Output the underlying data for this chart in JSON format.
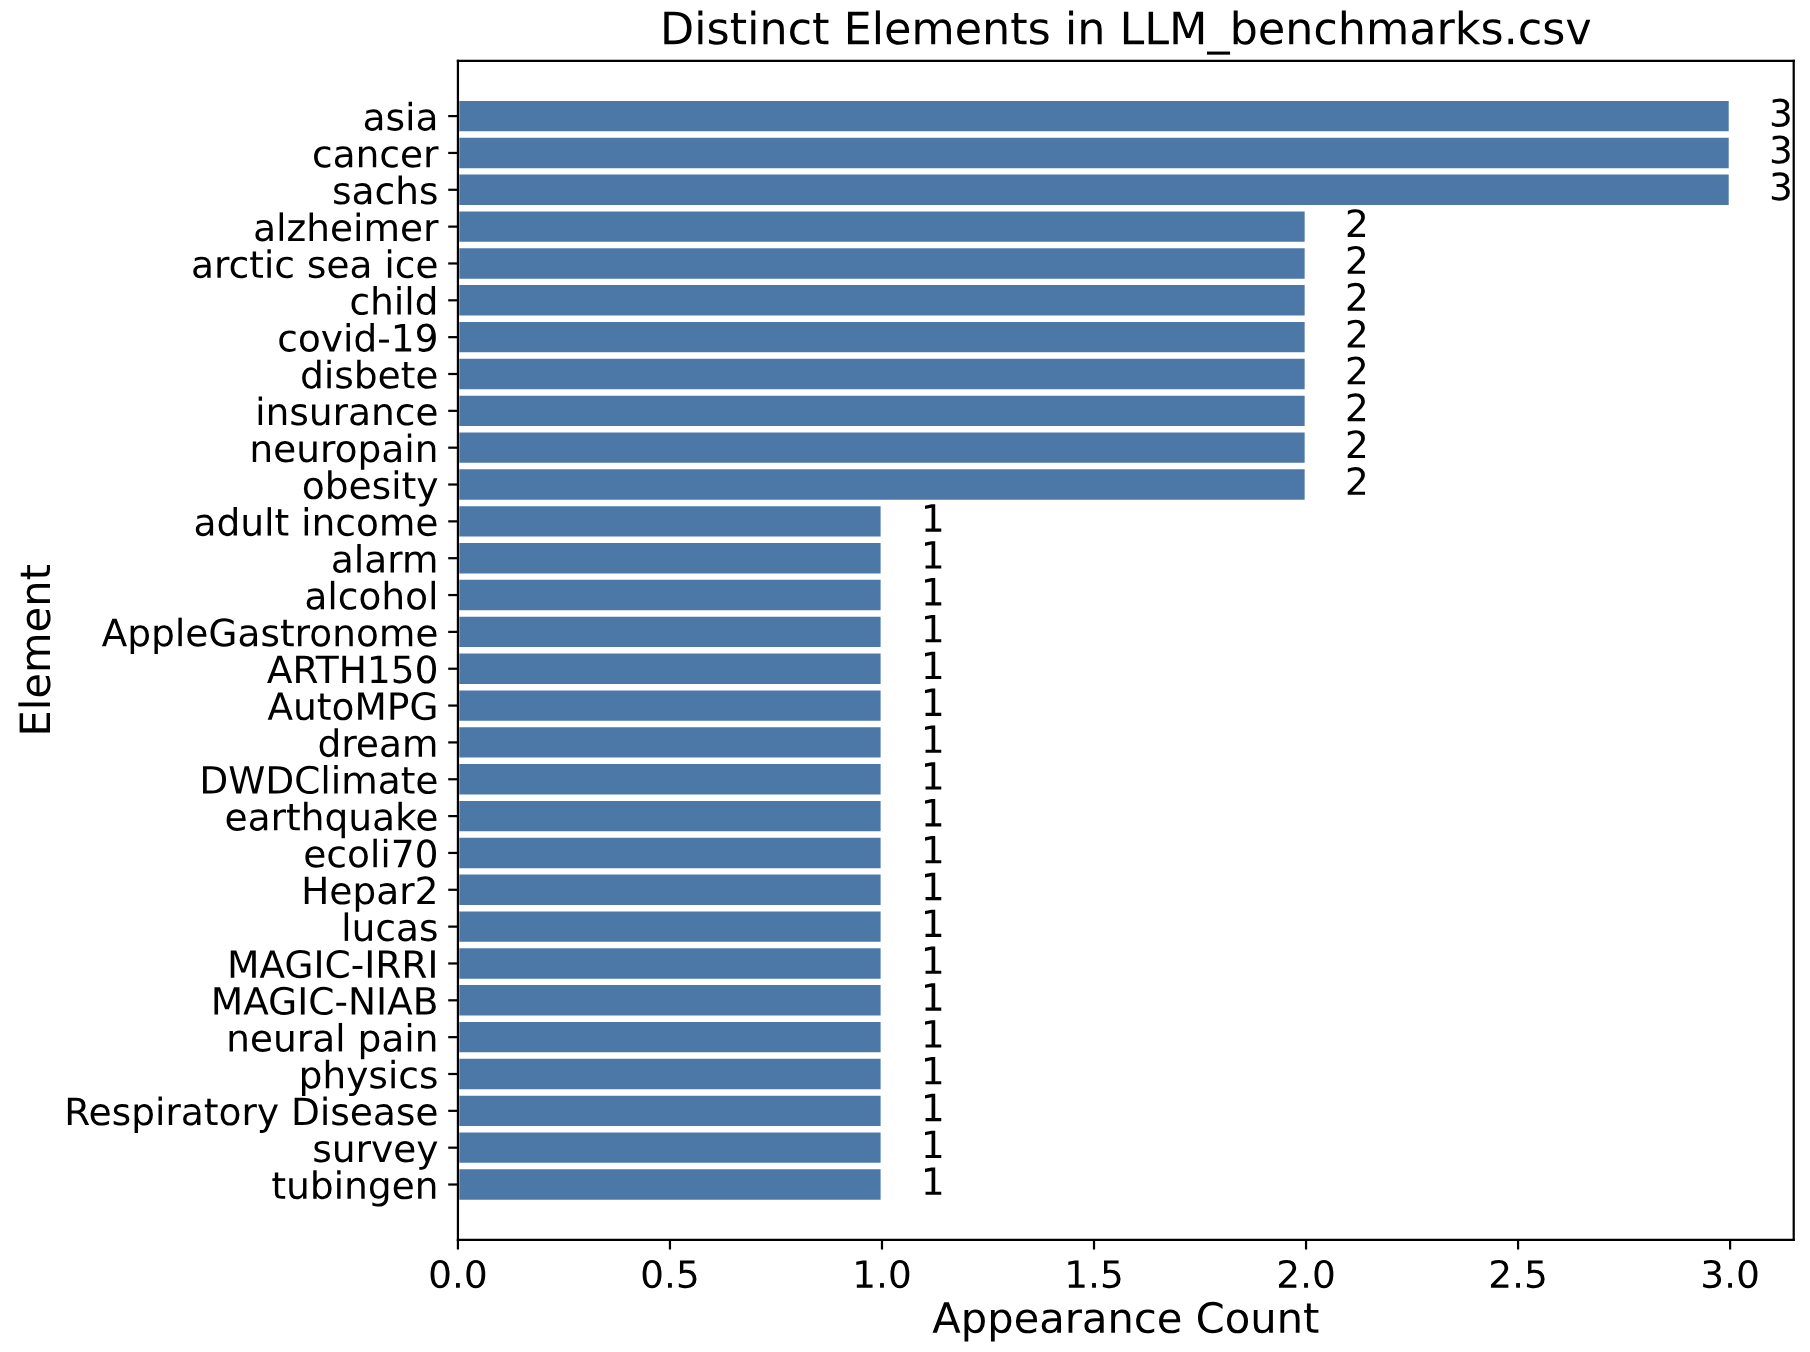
{
  "chart_data": {
    "type": "bar",
    "orientation": "horizontal",
    "title": "Distinct Elements in LLM_benchmarks.csv",
    "xlabel": "Appearance Count",
    "ylabel": "Element",
    "categories": [
      "asia",
      "cancer",
      "sachs",
      "alzheimer",
      "arctic sea ice",
      "child",
      "covid-19",
      "disbete",
      "insurance",
      "neuropain",
      "obesity",
      "adult income",
      "alarm",
      "alcohol",
      "AppleGastronome",
      "ARTH150",
      "AutoMPG",
      "dream",
      "DWDClimate",
      "earthquake",
      "ecoli70",
      "Hepar2",
      "lucas",
      "MAGIC-IRRI",
      "MAGIC-NIAB",
      "neural pain",
      "physics",
      "Respiratory Disease",
      "survey",
      "tubingen"
    ],
    "values": [
      3,
      3,
      3,
      2,
      2,
      2,
      2,
      2,
      2,
      2,
      2,
      1,
      1,
      1,
      1,
      1,
      1,
      1,
      1,
      1,
      1,
      1,
      1,
      1,
      1,
      1,
      1,
      1,
      1,
      1
    ],
    "color": "#4c78a8",
    "xlim": [
      0,
      3.15
    ],
    "xticks": [
      {
        "value": 0,
        "label": "0.0"
      },
      {
        "value": 0.5,
        "label": "0.5"
      },
      {
        "value": 1,
        "label": "1.0"
      },
      {
        "value": 1.5,
        "label": "1.5"
      },
      {
        "value": 2,
        "label": "2.0"
      },
      {
        "value": 2.5,
        "label": "2.5"
      },
      {
        "value": 3,
        "label": "3.0"
      }
    ],
    "grid": false,
    "data_labels": true
  }
}
